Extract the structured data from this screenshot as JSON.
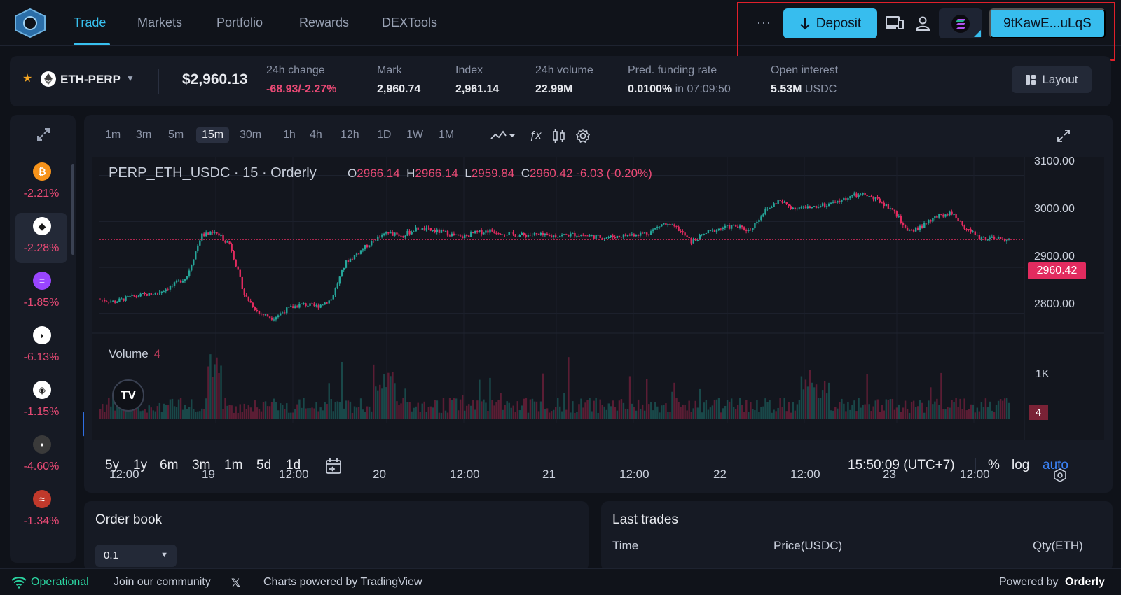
{
  "nav": {
    "items": [
      "Trade",
      "Markets",
      "Portfolio",
      "Rewards",
      "DEXTools"
    ],
    "more": "···",
    "deposit": "Deposit",
    "wallet": "9tKawE...uLqS"
  },
  "ticker": {
    "symbol": "ETH-PERP",
    "price": "$2,960.13",
    "stats": [
      {
        "label": "24h change",
        "value_neg": "-68.93/-2.27%",
        "value": "",
        "suffix": ""
      },
      {
        "label": "Mark",
        "value_neg": "",
        "value": "2,960.74",
        "suffix": ""
      },
      {
        "label": "Index",
        "value_neg": "",
        "value": "2,961.14",
        "suffix": ""
      },
      {
        "label": "24h volume",
        "value_neg": "",
        "value": "22.99M",
        "suffix": ""
      },
      {
        "label": "Pred. funding rate",
        "value_neg": "",
        "value": "0.0100%",
        "suffix": "in 07:09:50"
      },
      {
        "label": "Open interest",
        "value_neg": "",
        "value": "5.53M",
        "suffix": "USDC"
      }
    ],
    "layout": "Layout"
  },
  "sidebar": {
    "coins": [
      {
        "icon": "bitcoin-icon",
        "glyph": "₿",
        "color": "#f7931a",
        "change": "-2.21%"
      },
      {
        "icon": "ethereum-icon",
        "glyph": "◆",
        "color": "#ffffff",
        "change": "-2.28%"
      },
      {
        "icon": "solana-icon",
        "glyph": "≡",
        "color": "#9945ff",
        "change": "-1.85%"
      },
      {
        "icon": "coin-icon",
        "glyph": "◗",
        "color": "#ffffff",
        "change": "-6.13%"
      },
      {
        "icon": "bnb-icon",
        "glyph": "◈",
        "color": "#ffffff",
        "change": "-1.15%"
      },
      {
        "icon": "coin-icon",
        "glyph": "•",
        "color": "#3a3a3a",
        "change": "-4.60%"
      },
      {
        "icon": "sui-icon",
        "glyph": "≈",
        "color": "#c0392b",
        "change": "-1.34%"
      }
    ]
  },
  "chart": {
    "timeframes": [
      "1m",
      "3m",
      "5m",
      "15m",
      "30m",
      "1h",
      "4h",
      "12h",
      "1D",
      "1W",
      "1M"
    ],
    "active_timeframe": "15m",
    "title": "PERP_ETH_USDC · 15 · Orderly",
    "ohlc": {
      "o": "2966.14",
      "h": "2966.14",
      "l": "2959.84",
      "c": "2960.42",
      "chg": "-6.03 (-0.20%)"
    },
    "volume_label": "Volume",
    "volume_value": "4",
    "volume_axis": "1K",
    "y_labels": [
      "3100.00",
      "3000.00",
      "2900.00",
      "2800.00"
    ],
    "last_price": "2960.42",
    "x_labels": [
      "12:00",
      "19",
      "12:00",
      "20",
      "12:00",
      "21",
      "12:00",
      "22",
      "12:00",
      "23",
      "12:00"
    ],
    "ranges": [
      "5y",
      "1y",
      "6m",
      "3m",
      "1m",
      "5d",
      "1d"
    ],
    "clock": "15:50:09 (UTC+7)",
    "axis_opts": [
      "%",
      "log",
      "auto"
    ],
    "tv_logo": "TV",
    "colors": {
      "up": "#26a69a",
      "down": "#e22b5f"
    }
  },
  "chart_data": {
    "type": "candlestick",
    "title": "PERP_ETH_USDC · 15 · Orderly",
    "x_ticks": [
      "12:00",
      "19",
      "12:00",
      "20",
      "12:00",
      "21",
      "12:00",
      "22",
      "12:00",
      "23",
      "12:00"
    ],
    "ylim": [
      2760,
      3110
    ],
    "close_path": [
      2830,
      2825,
      2835,
      2840,
      2845,
      2860,
      2880,
      2970,
      2975,
      2950,
      2840,
      2800,
      2790,
      2810,
      2820,
      2815,
      2830,
      2910,
      2935,
      2960,
      2975,
      2970,
      2985,
      2980,
      2975,
      2965,
      2975,
      2980,
      2975,
      2970,
      2972,
      2968,
      2970,
      2972,
      2968,
      2965,
      2968,
      2972,
      2975,
      2995,
      2985,
      2955,
      2975,
      2985,
      2990,
      2980,
      3020,
      3045,
      3030,
      3030,
      3035,
      3040,
      3055,
      3058,
      3045,
      3025,
      2975,
      2990,
      3010,
      3020,
      2985,
      2965,
      2962,
      2960
    ],
    "last_price": 2960.42
  },
  "orderbook": {
    "title": "Order book",
    "precision": "0.1"
  },
  "trades": {
    "title": "Last trades",
    "cols": [
      "Time",
      "Price(USDC)",
      "Qty(ETH)"
    ]
  },
  "footer": {
    "status": "Operational",
    "community": "Join our community",
    "powered_chart": "Charts powered by TradingView",
    "powered_by": "Powered by",
    "brand": "Orderly",
    "url": "https://..."
  }
}
